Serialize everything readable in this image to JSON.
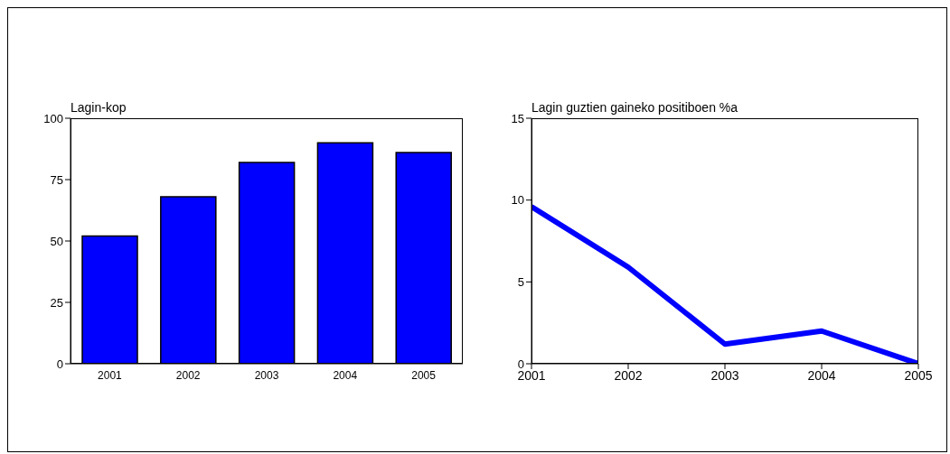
{
  "chart_data": [
    {
      "type": "bar",
      "ylabel": "Lagin-kop",
      "categories": [
        "2001",
        "2002",
        "2003",
        "2004",
        "2005"
      ],
      "values": [
        52,
        68,
        82,
        90,
        86
      ],
      "color": "#0000ff",
      "ylim": [
        0,
        100
      ],
      "yticks": [
        0,
        25,
        50,
        75,
        100
      ]
    },
    {
      "type": "line",
      "ylabel": "Lagin guztien gaineko positiboen %a",
      "x": [
        2001,
        2002,
        2003,
        2004,
        2005
      ],
      "values": [
        9.6,
        5.9,
        1.2,
        2.0,
        0
      ],
      "color": "#0000ff",
      "xlim": [
        2001,
        2005
      ],
      "xticks": [
        2001,
        2002,
        2003,
        2004,
        2005
      ],
      "ylim": [
        0,
        15
      ],
      "yticks": [
        0,
        5,
        10,
        15
      ],
      "marker": "none"
    }
  ]
}
